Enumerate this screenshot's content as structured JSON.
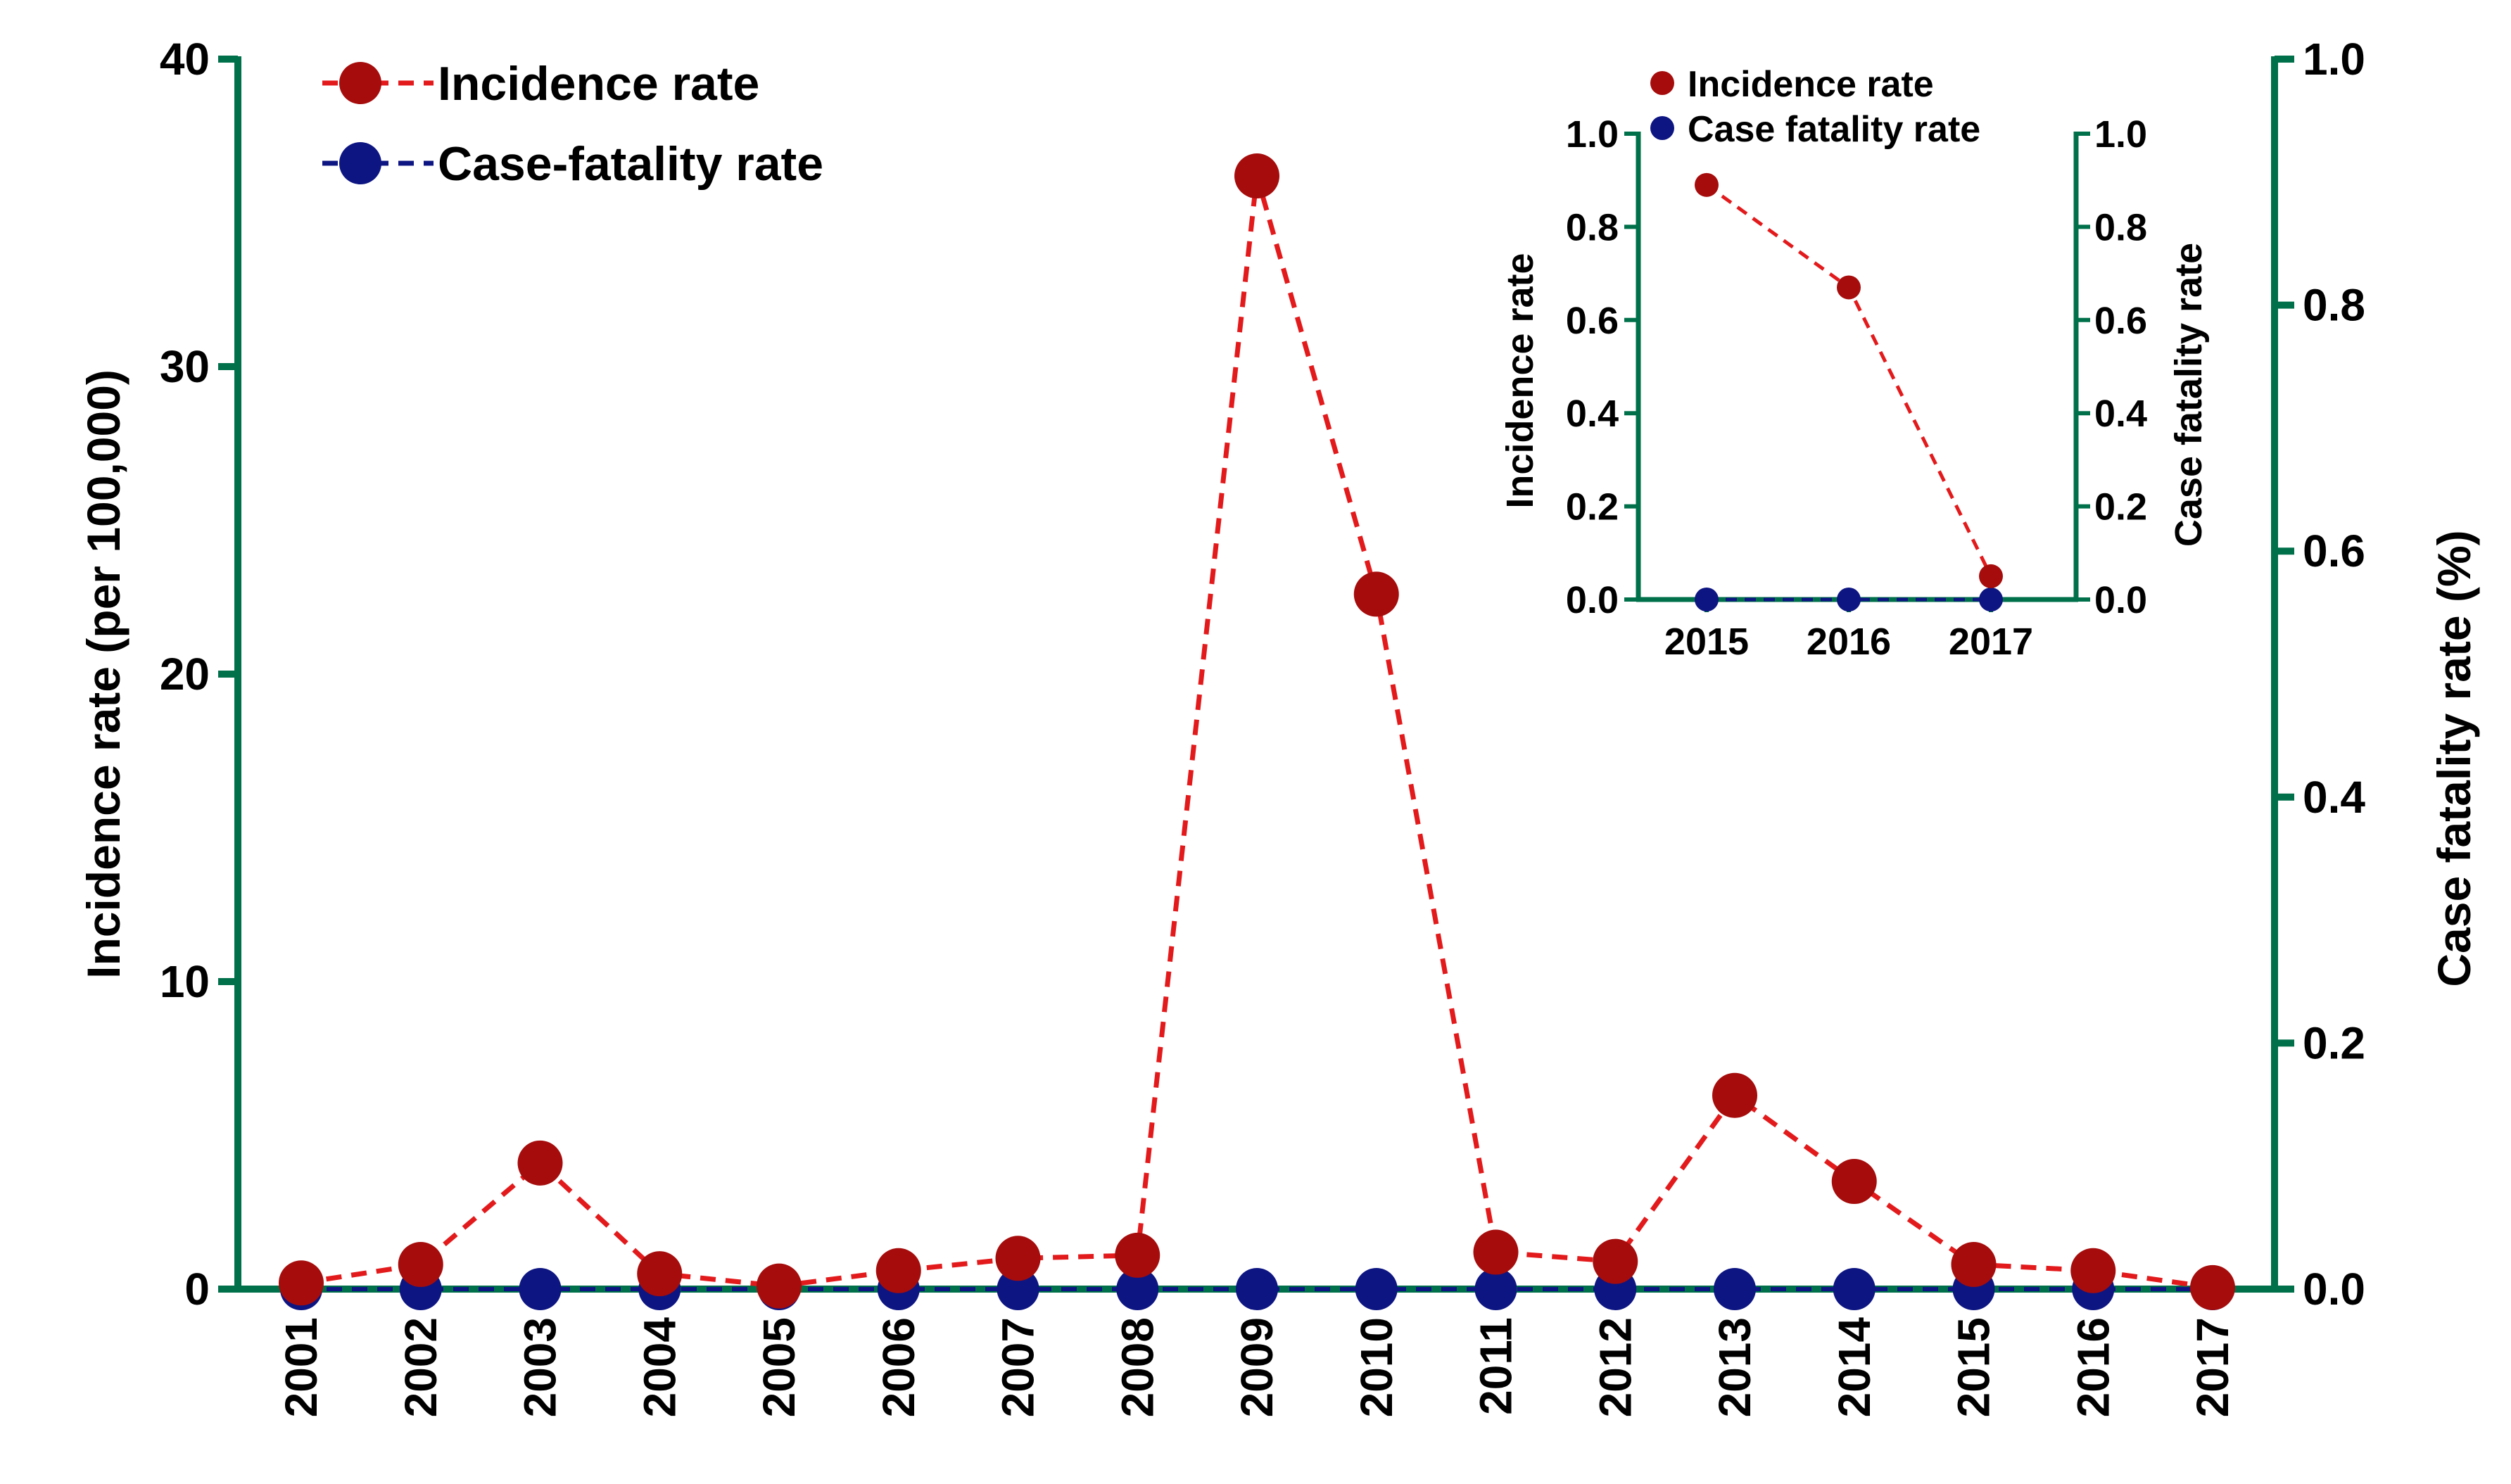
{
  "chart_data": [
    {
      "type": "line",
      "title": "",
      "categories": [
        "2001",
        "2002",
        "2003",
        "2004",
        "2005",
        "2006",
        "2007",
        "2008",
        "2009",
        "2010",
        "2011",
        "2012",
        "2013",
        "2014",
        "2015",
        "2016",
        "2017"
      ],
      "series": [
        {
          "name": "Incidence rate",
          "axis": "left",
          "color": "#a60c0c",
          "line_color": "#e31a1c",
          "line_style": "dashed",
          "values": [
            0.2,
            0.8,
            4.1,
            0.5,
            0.1,
            0.6,
            1.0,
            1.1,
            36.2,
            22.6,
            1.2,
            0.9,
            6.3,
            3.5,
            0.8,
            0.6,
            0.05
          ]
        },
        {
          "name": "Case-fatality rate",
          "axis": "right",
          "color": "#0d1582",
          "line_color": "#0d1582",
          "line_style": "dashed",
          "values": [
            0,
            0,
            0,
            0,
            0,
            0,
            0,
            0,
            0,
            0,
            0,
            0,
            0,
            0,
            0,
            0,
            0
          ]
        }
      ],
      "ylabel": "Incidence rate (per 100,000)",
      "y2label": "Case fatality rate (%)",
      "xlabel": "",
      "ylim": [
        0,
        40
      ],
      "y2lim": [
        0,
        1.0
      ],
      "yticks": [
        "0",
        "10",
        "20",
        "30",
        "40"
      ],
      "y2ticks": [
        "0.0",
        "0.2",
        "0.4",
        "0.6",
        "0.8",
        "1.0"
      ],
      "axis_color": "#00704a",
      "legend_position": "top-left",
      "legend": [
        "Incidence rate",
        "Case-fatality rate"
      ]
    },
    {
      "type": "line",
      "title": "",
      "categories": [
        "2015",
        "2016",
        "2017"
      ],
      "series": [
        {
          "name": "Incidence rate",
          "axis": "left",
          "color": "#a60c0c",
          "line_color": "#e31a1c",
          "line_style": "dashed",
          "values": [
            0.89,
            0.67,
            0.05
          ]
        },
        {
          "name": "Case fatality rate",
          "axis": "right",
          "color": "#0d1582",
          "line_color": "#0d1582",
          "line_style": "dashed",
          "values": [
            0,
            0,
            0
          ]
        }
      ],
      "ylabel": "Incidence rate",
      "y2label": "Case fatality rate",
      "ylim": [
        0,
        1.0
      ],
      "y2lim": [
        0,
        1.0
      ],
      "yticks": [
        "0.0",
        "0.2",
        "0.4",
        "0.6",
        "0.8",
        "1.0"
      ],
      "y2ticks": [
        "0.0",
        "0.2",
        "0.4",
        "0.6",
        "0.8",
        "1.0"
      ],
      "axis_color": "#00704a",
      "legend_position": "top",
      "legend": [
        "Incidence rate",
        "Case fatality rate"
      ]
    }
  ]
}
